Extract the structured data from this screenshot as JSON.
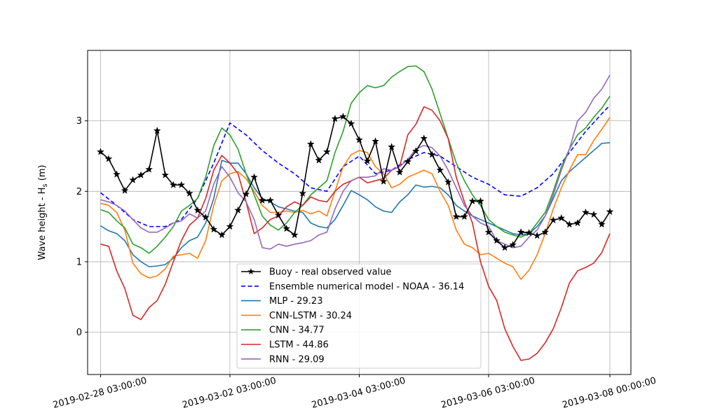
{
  "chart_data": {
    "type": "line",
    "xlabel": "",
    "ylabel": "Wave height - H",
    "ylabel_subscript": "s",
    "ylabel_unit": " (m)",
    "ylim": [
      -0.6,
      4.0
    ],
    "yticks": [
      0,
      1,
      2,
      3
    ],
    "xlim": [
      -0.2,
      8.2
    ],
    "xticks": [
      {
        "t": 0,
        "label": "2019-02-28 03:00:00"
      },
      {
        "t": 2,
        "label": "2019-03-02 03:00:00"
      },
      {
        "t": 4,
        "label": "2019-03-04 03:00:00"
      },
      {
        "t": 6,
        "label": "2019-03-06 03:00:00"
      },
      {
        "t": 7.875,
        "label": "2019-03-08 00:00:00"
      }
    ],
    "grid": true,
    "legend_position": "lower center",
    "colors": {
      "buoy": "#000000",
      "noaa": "#0000ff",
      "mlp": "#1f77b4",
      "cnnlstm": "#ff7f0e",
      "cnn": "#2ca02c",
      "lstm": "#d62728",
      "rnn": "#9467bd"
    },
    "series": [
      {
        "key": "buoy",
        "name": "Buoy - real observed value",
        "color": "#000000",
        "style": "solid",
        "marker": "star",
        "x": [
          0,
          0.125,
          0.25,
          0.375,
          0.5,
          0.625,
          0.75,
          0.875,
          1,
          1.125,
          1.25,
          1.375,
          1.5,
          1.625,
          1.75,
          1.875,
          2,
          2.125,
          2.25,
          2.375,
          2.5,
          2.625,
          2.75,
          2.875,
          3,
          3.125,
          3.25,
          3.375,
          3.5,
          3.625,
          3.75,
          3.875,
          4,
          4.125,
          4.25,
          4.375,
          4.5,
          4.625,
          4.75,
          4.875,
          5,
          5.125,
          5.25,
          5.375,
          5.5,
          5.625,
          5.75,
          5.875,
          6,
          6.125,
          6.25,
          6.375,
          6.5,
          6.625,
          6.75,
          6.875,
          7,
          7.125,
          7.25,
          7.375,
          7.5,
          7.625,
          7.75,
          7.875
        ],
        "values": [
          2.56,
          2.46,
          2.24,
          2.01,
          2.16,
          2.23,
          2.31,
          2.86,
          2.23,
          2.09,
          2.09,
          1.97,
          1.73,
          1.63,
          1.46,
          1.38,
          1.5,
          1.73,
          1.96,
          2.2,
          1.87,
          1.87,
          1.66,
          1.47,
          1.38,
          1.97,
          2.67,
          2.44,
          2.56,
          3.03,
          3.06,
          2.96,
          2.73,
          2.43,
          2.71,
          2.14,
          2.63,
          2.27,
          2.42,
          2.57,
          2.75,
          2.52,
          2.3,
          2.13,
          1.64,
          1.64,
          1.86,
          1.86,
          1.42,
          1.3,
          1.2,
          1.24,
          1.42,
          1.41,
          1.37,
          1.42,
          1.59,
          1.62,
          1.53,
          1.55,
          1.7,
          1.67,
          1.53,
          1.71
        ]
      },
      {
        "key": "noaa",
        "name": "Ensemble numerical model - NOAA - 36.14",
        "color": "#0000ff",
        "style": "dashed",
        "marker": "none",
        "x": [
          0,
          0.25,
          0.5,
          0.75,
          1,
          1.25,
          1.5,
          1.75,
          2,
          2.25,
          2.5,
          2.75,
          3,
          3.25,
          3.5,
          3.75,
          4,
          4.25,
          4.5,
          4.75,
          5,
          5.25,
          5.5,
          5.75,
          6,
          6.25,
          6.5,
          6.75,
          7,
          7.25,
          7.5,
          7.75,
          7.875
        ],
        "values": [
          1.98,
          1.8,
          1.6,
          1.5,
          1.5,
          1.6,
          1.9,
          2.4,
          2.97,
          2.8,
          2.58,
          2.4,
          2.25,
          2.05,
          2.0,
          2.35,
          2.5,
          2.25,
          2.3,
          2.45,
          2.55,
          2.5,
          2.35,
          2.2,
          2.1,
          1.95,
          1.93,
          2.05,
          2.25,
          2.55,
          2.85,
          3.1,
          3.22
        ]
      },
      {
        "key": "mlp",
        "name": "MLP - 29.23",
        "color": "#1f77b4",
        "style": "solid",
        "marker": "none",
        "x": [
          0,
          0.125,
          0.25,
          0.375,
          0.5,
          0.625,
          0.75,
          0.875,
          1,
          1.125,
          1.25,
          1.375,
          1.5,
          1.625,
          1.75,
          1.875,
          2,
          2.125,
          2.25,
          2.375,
          2.5,
          2.625,
          2.75,
          2.875,
          3,
          3.125,
          3.25,
          3.375,
          3.5,
          3.625,
          3.75,
          3.875,
          4,
          4.125,
          4.25,
          4.375,
          4.5,
          4.625,
          4.75,
          4.875,
          5,
          5.125,
          5.25,
          5.375,
          5.5,
          5.625,
          5.75,
          5.875,
          6,
          6.125,
          6.25,
          6.375,
          6.5,
          6.625,
          6.75,
          6.875,
          7,
          7.125,
          7.25,
          7.375,
          7.5,
          7.625,
          7.75,
          7.875
        ],
        "values": [
          1.51,
          1.44,
          1.4,
          1.3,
          1.1,
          1.0,
          0.93,
          0.94,
          0.96,
          1.05,
          1.2,
          1.3,
          1.35,
          1.55,
          1.9,
          2.44,
          2.4,
          2.4,
          2.25,
          2.05,
          1.9,
          1.85,
          1.78,
          1.75,
          1.72,
          1.7,
          1.55,
          1.5,
          1.48,
          1.6,
          1.8,
          2.01,
          1.95,
          1.88,
          1.78,
          1.72,
          1.7,
          1.85,
          1.95,
          2.09,
          2.06,
          2.07,
          2.05,
          1.95,
          1.8,
          1.72,
          1.65,
          1.6,
          1.55,
          1.5,
          1.45,
          1.4,
          1.38,
          1.4,
          1.5,
          1.65,
          1.9,
          2.15,
          2.28,
          2.38,
          2.48,
          2.58,
          2.68,
          2.69
        ]
      },
      {
        "key": "cnnlstm",
        "name": "CNN-LSTM - 30.24",
        "color": "#ff7f0e",
        "style": "solid",
        "marker": "none",
        "x": [
          0,
          0.125,
          0.25,
          0.375,
          0.5,
          0.625,
          0.75,
          0.875,
          1,
          1.125,
          1.25,
          1.375,
          1.5,
          1.625,
          1.75,
          1.875,
          2,
          2.125,
          2.25,
          2.375,
          2.5,
          2.625,
          2.75,
          2.875,
          3,
          3.125,
          3.25,
          3.375,
          3.5,
          3.625,
          3.75,
          3.875,
          4,
          4.125,
          4.25,
          4.375,
          4.5,
          4.625,
          4.75,
          4.875,
          5,
          5.125,
          5.25,
          5.375,
          5.5,
          5.625,
          5.75,
          5.875,
          6,
          6.125,
          6.25,
          6.375,
          6.5,
          6.625,
          6.75,
          6.875,
          7,
          7.125,
          7.25,
          7.375,
          7.5,
          7.625,
          7.75,
          7.875
        ],
        "values": [
          1.83,
          1.8,
          1.7,
          1.45,
          0.98,
          0.83,
          0.77,
          0.8,
          0.9,
          1.08,
          1.1,
          1.12,
          1.05,
          1.3,
          1.8,
          2.15,
          2.25,
          2.28,
          2.18,
          2.0,
          1.8,
          1.7,
          1.7,
          1.72,
          1.7,
          1.73,
          1.68,
          1.72,
          1.65,
          2.0,
          2.35,
          2.52,
          2.58,
          2.55,
          2.35,
          2.25,
          2.05,
          2.1,
          2.2,
          2.25,
          2.3,
          2.25,
          2.0,
          1.8,
          1.45,
          1.25,
          1.2,
          1.1,
          1.12,
          1.05,
          0.98,
          0.93,
          0.75,
          0.88,
          1.1,
          1.4,
          1.75,
          2.05,
          2.3,
          2.52,
          2.52,
          2.72,
          2.88,
          3.05
        ]
      },
      {
        "key": "cnn",
        "name": "CNN - 34.77",
        "color": "#2ca02c",
        "style": "solid",
        "marker": "none",
        "x": [
          0,
          0.125,
          0.25,
          0.375,
          0.5,
          0.625,
          0.75,
          0.875,
          1,
          1.125,
          1.25,
          1.375,
          1.5,
          1.625,
          1.75,
          1.875,
          2,
          2.125,
          2.25,
          2.375,
          2.5,
          2.625,
          2.75,
          2.875,
          3,
          3.125,
          3.25,
          3.375,
          3.5,
          3.625,
          3.75,
          3.875,
          4,
          4.125,
          4.25,
          4.375,
          4.5,
          4.625,
          4.75,
          4.875,
          5,
          5.125,
          5.25,
          5.375,
          5.5,
          5.625,
          5.75,
          5.875,
          6,
          6.125,
          6.25,
          6.375,
          6.5,
          6.625,
          6.75,
          6.875,
          7,
          7.125,
          7.25,
          7.375,
          7.5,
          7.625,
          7.75,
          7.875
        ],
        "values": [
          1.74,
          1.7,
          1.58,
          1.48,
          1.25,
          1.2,
          1.12,
          1.22,
          1.35,
          1.5,
          1.72,
          1.8,
          1.9,
          2.2,
          2.65,
          2.9,
          2.8,
          2.6,
          2.25,
          1.95,
          1.65,
          1.52,
          1.45,
          1.55,
          1.7,
          1.8,
          1.95,
          2.05,
          2.15,
          2.55,
          2.85,
          3.25,
          3.4,
          3.5,
          3.47,
          3.5,
          3.62,
          3.7,
          3.77,
          3.78,
          3.7,
          3.45,
          3.1,
          2.75,
          2.4,
          2.15,
          1.95,
          1.8,
          1.6,
          1.5,
          1.42,
          1.38,
          1.35,
          1.4,
          1.55,
          1.7,
          2.0,
          2.35,
          2.6,
          2.8,
          2.9,
          3.05,
          3.18,
          3.35
        ]
      },
      {
        "key": "lstm",
        "name": "LSTM - 44.86",
        "color": "#d62728",
        "style": "solid",
        "marker": "none",
        "x": [
          0,
          0.125,
          0.25,
          0.375,
          0.5,
          0.625,
          0.75,
          0.875,
          1,
          1.125,
          1.25,
          1.375,
          1.5,
          1.625,
          1.75,
          1.875,
          2,
          2.125,
          2.25,
          2.375,
          2.5,
          2.625,
          2.75,
          2.875,
          3,
          3.125,
          3.25,
          3.375,
          3.5,
          3.625,
          3.75,
          3.875,
          4,
          4.125,
          4.25,
          4.375,
          4.5,
          4.625,
          4.75,
          4.875,
          5,
          5.125,
          5.25,
          5.375,
          5.5,
          5.625,
          5.75,
          5.875,
          6,
          6.125,
          6.25,
          6.375,
          6.5,
          6.625,
          6.75,
          6.875,
          7,
          7.125,
          7.25,
          7.375,
          7.5,
          7.625,
          7.75,
          7.875
        ],
        "values": [
          1.25,
          1.22,
          0.87,
          0.62,
          0.24,
          0.18,
          0.35,
          0.45,
          0.68,
          1.0,
          1.3,
          1.52,
          1.62,
          1.9,
          2.3,
          2.51,
          2.4,
          2.25,
          1.85,
          1.4,
          1.48,
          1.6,
          1.65,
          1.78,
          1.85,
          1.8,
          1.92,
          1.87,
          1.85,
          2.0,
          2.1,
          2.15,
          2.2,
          2.12,
          2.15,
          2.18,
          2.3,
          2.35,
          2.8,
          2.95,
          3.2,
          3.15,
          3.0,
          2.75,
          2.2,
          1.85,
          1.55,
          1.0,
          0.65,
          0.45,
          0.05,
          -0.2,
          -0.4,
          -0.38,
          -0.3,
          -0.15,
          0.05,
          0.35,
          0.7,
          0.87,
          0.92,
          0.98,
          1.13,
          1.4
        ]
      },
      {
        "key": "rnn",
        "name": "RNN - 29.09",
        "color": "#9467bd",
        "style": "solid",
        "marker": "none",
        "x": [
          0,
          0.125,
          0.25,
          0.375,
          0.5,
          0.625,
          0.75,
          0.875,
          1,
          1.125,
          1.25,
          1.375,
          1.5,
          1.625,
          1.75,
          1.875,
          2,
          2.125,
          2.25,
          2.375,
          2.5,
          2.625,
          2.75,
          2.875,
          3,
          3.125,
          3.25,
          3.375,
          3.5,
          3.625,
          3.75,
          3.875,
          4,
          4.125,
          4.25,
          4.375,
          4.5,
          4.625,
          4.75,
          4.875,
          5,
          5.125,
          5.25,
          5.375,
          5.5,
          5.625,
          5.75,
          5.875,
          6,
          6.125,
          6.25,
          6.375,
          6.5,
          6.625,
          6.75,
          6.875,
          7,
          7.125,
          7.25,
          7.375,
          7.5,
          7.625,
          7.75,
          7.875
        ],
        "values": [
          1.88,
          1.85,
          1.8,
          1.72,
          1.6,
          1.48,
          1.42,
          1.42,
          1.48,
          1.55,
          1.58,
          1.68,
          1.62,
          1.72,
          2.1,
          2.35,
          2.2,
          1.98,
          1.85,
          1.6,
          1.2,
          1.18,
          1.25,
          1.22,
          1.25,
          1.27,
          1.3,
          1.38,
          1.42,
          1.75,
          2.0,
          2.15,
          2.2,
          2.2,
          2.22,
          2.32,
          2.3,
          2.35,
          2.45,
          2.6,
          2.65,
          2.62,
          2.5,
          2.3,
          2.05,
          1.8,
          1.65,
          1.55,
          1.5,
          1.3,
          1.25,
          1.2,
          1.22,
          1.35,
          1.45,
          1.65,
          1.95,
          2.3,
          2.6,
          3.0,
          3.12,
          3.32,
          3.45,
          3.65
        ]
      }
    ]
  }
}
